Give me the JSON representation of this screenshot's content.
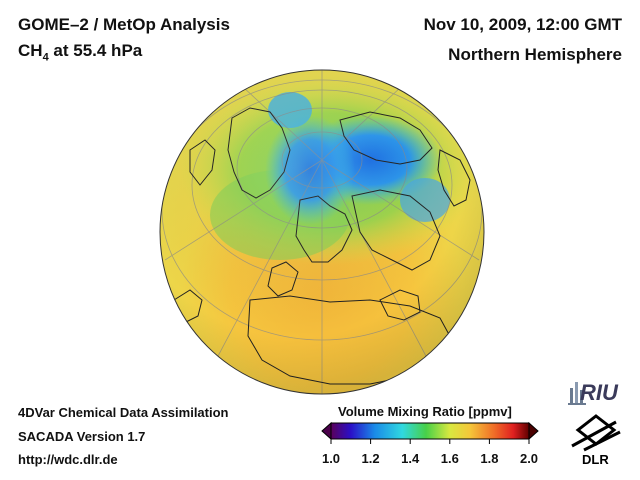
{
  "header": {
    "title_line1": "GOME–2 / MetOp Analysis",
    "species_prefix": "CH",
    "species_subscript": "4",
    "species_suffix": " at 55.4 hPa",
    "datetime": "Nov 10, 2009, 12:00 GMT",
    "region": "Northern Hemisphere"
  },
  "footer": {
    "line1": "4DVar Chemical Data Assimilation",
    "line2": "SACADA Version 1.7",
    "url": "http://wdc.dlr.de"
  },
  "colorbar": {
    "title": "Volume Mixing Ratio [ppmv]",
    "ticks": [
      "1.0",
      "1.2",
      "1.4",
      "1.6",
      "1.8",
      "2.0"
    ],
    "min": 1.0,
    "max": 2.0
  },
  "logos": {
    "riu_text": "RIU",
    "dlr_text": "DLR"
  },
  "colors": {
    "high_yellow": "#f2c83a",
    "mid_green": "#8fd24a",
    "low_blue": "#1e7ae6"
  }
}
